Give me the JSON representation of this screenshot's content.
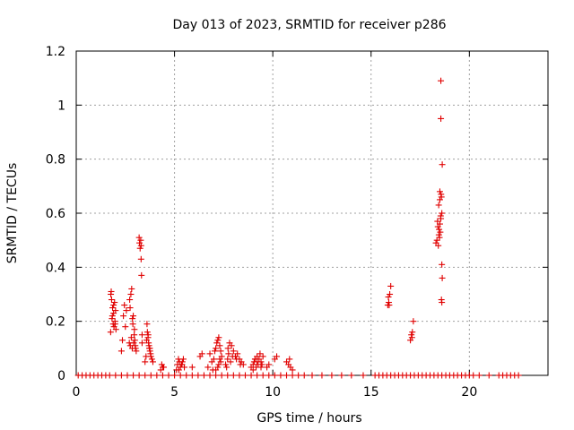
{
  "chart_data": {
    "type": "scatter",
    "title": "Day 013 of 2023, SRMTID for receiver p286",
    "xlabel": "GPS time / hours",
    "ylabel": "SRMTID / TECUs",
    "xlim": [
      0,
      24
    ],
    "ylim": [
      0,
      1.2
    ],
    "xticks": [
      0,
      5,
      10,
      15,
      20
    ],
    "xtick_labels": [
      "0",
      "5",
      "10",
      "15",
      "20"
    ],
    "yticks": [
      0,
      0.2,
      0.4,
      0.6,
      0.8,
      1.0,
      1.2
    ],
    "ytick_labels": [
      "0",
      "0.2",
      "0.4",
      "0.6",
      "0.8",
      "1",
      "1.2"
    ],
    "grid": true,
    "marker": "+",
    "color": "#e00000",
    "series": [
      {
        "name": "SRMTID",
        "x": [
          0.1,
          0.3,
          0.5,
          0.7,
          0.9,
          1.1,
          1.3,
          1.5,
          1.7,
          2.0,
          2.3,
          2.6,
          2.9,
          3.2,
          3.5,
          3.8,
          4.1,
          4.4,
          4.7,
          5.0,
          5.3,
          5.6,
          5.9,
          6.2,
          6.5,
          6.8,
          7.1,
          7.4,
          7.7,
          8.0,
          8.3,
          8.6,
          8.9,
          9.2,
          9.5,
          9.8,
          10.1,
          10.4,
          10.7,
          11.0,
          11.3,
          11.6,
          12.0,
          12.5,
          13.0,
          13.5,
          14.0,
          14.6,
          15.2,
          15.4,
          15.6,
          15.8,
          16.0,
          16.2,
          16.4,
          16.6,
          16.8,
          17.0,
          17.2,
          17.4,
          17.6,
          17.8,
          18.0,
          18.2,
          18.4,
          18.6,
          18.8,
          19.0,
          19.2,
          19.4,
          19.6,
          19.8,
          20.0,
          20.2,
          20.5,
          21.0,
          21.5,
          21.7,
          21.9,
          22.1,
          22.3,
          22.5,
          1.75,
          1.78,
          1.8,
          1.82,
          1.85,
          1.88,
          1.9,
          1.92,
          1.95,
          1.97,
          2.0,
          2.02,
          1.76,
          1.84,
          1.9,
          1.98,
          2.3,
          2.35,
          2.4,
          2.45,
          2.5,
          2.55,
          2.7,
          2.72,
          2.75,
          2.78,
          2.8,
          2.82,
          2.85,
          2.88,
          2.9,
          2.92,
          2.95,
          2.98,
          3.0,
          3.02,
          3.05,
          2.74,
          2.86,
          2.96,
          3.2,
          3.22,
          3.25,
          3.28,
          3.3,
          3.3,
          3.32,
          3.35,
          3.35,
          3.5,
          3.55,
          3.6,
          3.62,
          3.65,
          3.68,
          3.7,
          3.72,
          3.75,
          3.78,
          3.8,
          3.85,
          3.9,
          3.58,
          3.66,
          3.74,
          4.3,
          4.35,
          4.4,
          4.45,
          5.1,
          5.15,
          5.2,
          5.25,
          5.3,
          5.35,
          5.4,
          5.45,
          5.5,
          5.22,
          5.38,
          5.9,
          6.3,
          6.4,
          6.7,
          6.8,
          6.9,
          7.0,
          7.05,
          7.1,
          7.15,
          7.2,
          7.25,
          7.3,
          7.35,
          7.4,
          7.3,
          7.25,
          7.35,
          7.2,
          6.95,
          7.1,
          7.6,
          7.7,
          7.8,
          7.9,
          8.0,
          8.1,
          8.2,
          8.3,
          8.4,
          8.5,
          7.75,
          7.85,
          7.95,
          8.15,
          8.35,
          7.65,
          7.72,
          8.9,
          9.0,
          9.05,
          9.1,
          9.15,
          9.2,
          9.25,
          9.3,
          9.35,
          9.4,
          9.45,
          9.5,
          9.0,
          9.2,
          9.4,
          9.1,
          9.7,
          9.8,
          10.1,
          10.2,
          10.7,
          10.8,
          10.85,
          10.9,
          11.0,
          15.85,
          15.9,
          15.95,
          16.0,
          15.88,
          15.92,
          17.0,
          17.05,
          17.1,
          17.15,
          17.08,
          18.3,
          18.35,
          18.4,
          18.45,
          18.5,
          18.55,
          18.6,
          18.42,
          18.48,
          18.52,
          18.38,
          18.46,
          18.54,
          18.44,
          18.5,
          18.5,
          18.56,
          18.58,
          18.6,
          18.62,
          18.6,
          18.58,
          18.62,
          18.55
        ],
        "y": [
          0,
          0,
          0,
          0,
          0,
          0,
          0,
          0,
          0,
          0,
          0,
          0,
          0,
          0,
          0,
          0,
          0,
          0,
          0,
          0,
          0,
          0,
          0,
          0,
          0,
          0,
          0,
          0,
          0,
          0,
          0,
          0,
          0,
          0,
          0,
          0,
          0,
          0,
          0,
          0,
          0,
          0,
          0,
          0,
          0,
          0,
          0,
          0,
          0,
          0,
          0,
          0,
          0,
          0,
          0,
          0,
          0,
          0,
          0,
          0,
          0,
          0,
          0,
          0,
          0,
          0,
          0,
          0,
          0,
          0,
          0,
          0,
          0,
          0,
          0,
          0,
          0,
          0,
          0,
          0,
          0,
          0,
          0.16,
          0.31,
          0.28,
          0.21,
          0.25,
          0.19,
          0.23,
          0.18,
          0.27,
          0.2,
          0.24,
          0.17,
          0.3,
          0.22,
          0.26,
          0.19,
          0.09,
          0.13,
          0.22,
          0.26,
          0.18,
          0.24,
          0.12,
          0.28,
          0.11,
          0.3,
          0.14,
          0.32,
          0.1,
          0.19,
          0.22,
          0.12,
          0.15,
          0.13,
          0.11,
          0.1,
          0.09,
          0.25,
          0.21,
          0.17,
          0.51,
          0.49,
          0.47,
          0.5,
          0.48,
          0.43,
          0.37,
          0.15,
          0.12,
          0.05,
          0.07,
          0.19,
          0.16,
          0.14,
          0.12,
          0.11,
          0.1,
          0.09,
          0.08,
          0.07,
          0.06,
          0.05,
          0.13,
          0.15,
          0.1,
          0.02,
          0.04,
          0.03,
          0.03,
          0.02,
          0.04,
          0.06,
          0.05,
          0.03,
          0.04,
          0.05,
          0.06,
          0.03,
          0.02,
          0.04,
          0.03,
          0.07,
          0.08,
          0.03,
          0.08,
          0.05,
          0.06,
          0.09,
          0.1,
          0.12,
          0.13,
          0.14,
          0.11,
          0.09,
          0.07,
          0.06,
          0.04,
          0.05,
          0.03,
          0.02,
          0.02,
          0.04,
          0.06,
          0.12,
          0.11,
          0.09,
          0.07,
          0.08,
          0.06,
          0.05,
          0.04,
          0.08,
          0.05,
          0.07,
          0.06,
          0.04,
          0.03,
          0.1,
          0.03,
          0.04,
          0.05,
          0.06,
          0.03,
          0.07,
          0.04,
          0.06,
          0.08,
          0.05,
          0.04,
          0.07,
          0.02,
          0.05,
          0.03,
          0.06,
          0.03,
          0.04,
          0.06,
          0.07,
          0.05,
          0.04,
          0.06,
          0.03,
          0.02,
          0.26,
          0.27,
          0.3,
          0.33,
          0.29,
          0.26,
          0.13,
          0.15,
          0.16,
          0.2,
          0.14,
          0.49,
          0.5,
          0.55,
          0.52,
          0.56,
          0.58,
          0.6,
          0.48,
          0.51,
          0.53,
          0.57,
          0.54,
          0.59,
          0.63,
          0.65,
          0.68,
          0.67,
          0.66,
          0.41,
          0.36,
          0.27,
          0.28,
          0.78,
          0.95
        ],
        "extra_points": [
          [
            18.55,
            1.09
          ]
        ]
      }
    ]
  }
}
